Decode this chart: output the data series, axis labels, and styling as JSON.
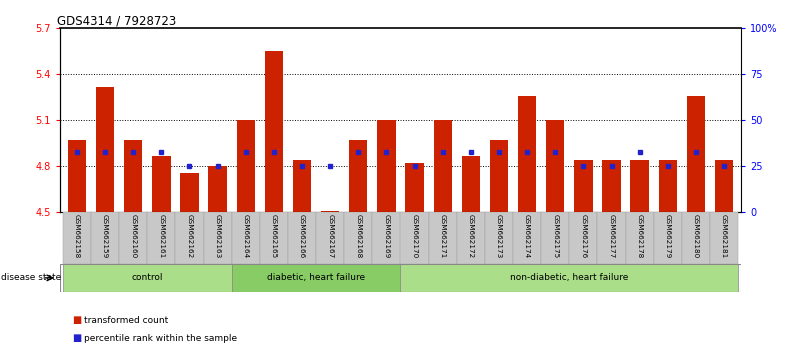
{
  "title": "GDS4314 / 7928723",
  "samples": [
    "GSM662158",
    "GSM662159",
    "GSM662160",
    "GSM662161",
    "GSM662162",
    "GSM662163",
    "GSM662164",
    "GSM662165",
    "GSM662166",
    "GSM662167",
    "GSM662168",
    "GSM662169",
    "GSM662170",
    "GSM662171",
    "GSM662172",
    "GSM662173",
    "GSM662174",
    "GSM662175",
    "GSM662176",
    "GSM662177",
    "GSM662178",
    "GSM662179",
    "GSM662180",
    "GSM662181"
  ],
  "transformed_count": [
    4.97,
    5.32,
    4.97,
    4.87,
    4.76,
    4.8,
    5.1,
    5.55,
    4.84,
    4.51,
    4.97,
    5.1,
    4.82,
    5.1,
    4.87,
    4.97,
    5.26,
    5.1,
    4.84,
    4.84,
    4.84,
    4.84,
    5.26,
    4.84
  ],
  "percentile_rank": [
    33,
    33,
    33,
    33,
    25,
    25,
    33,
    33,
    25,
    25,
    33,
    33,
    25,
    33,
    33,
    33,
    33,
    33,
    25,
    25,
    33,
    25,
    33,
    25
  ],
  "ymin": 4.5,
  "ymax": 5.7,
  "yticks_left": [
    4.5,
    4.8,
    5.1,
    5.4,
    5.7
  ],
  "yticks_right": [
    0,
    25,
    50,
    75,
    100
  ],
  "bar_color": "#cc2200",
  "dot_color": "#2222cc",
  "groups": [
    {
      "label": "control",
      "start": 0,
      "end": 6
    },
    {
      "label": "diabetic, heart failure",
      "start": 6,
      "end": 12
    },
    {
      "label": "non-diabetic, heart failure",
      "start": 12,
      "end": 24
    }
  ],
  "disease_state_label": "disease state",
  "legend_items": [
    {
      "label": "transformed count",
      "color": "#cc2200"
    },
    {
      "label": "percentile rank within the sample",
      "color": "#2222cc"
    }
  ]
}
